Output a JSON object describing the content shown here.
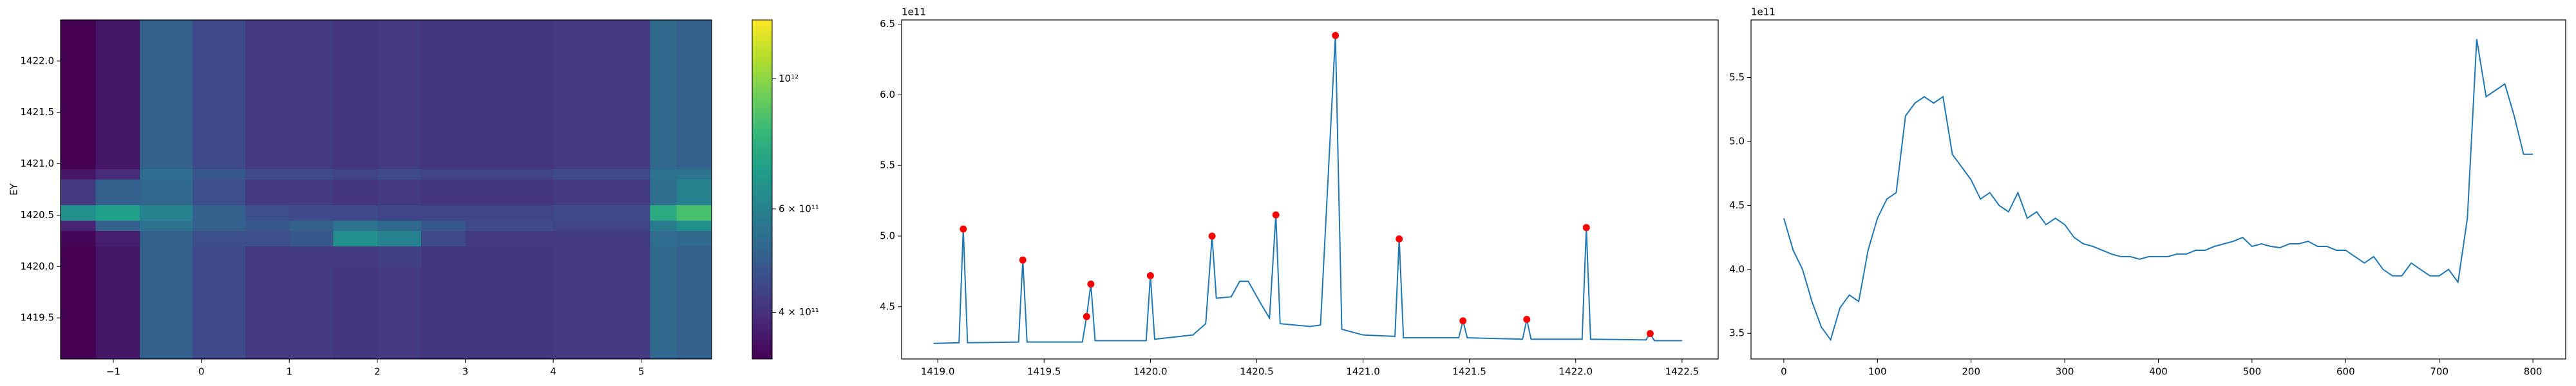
{
  "chart_data": [
    {
      "type": "heatmap",
      "ylabel": "EY",
      "colormap": "viridis",
      "x_edges": [
        -1.6,
        -1.2,
        -0.7,
        -0.1,
        0.5,
        1.0,
        1.5,
        2.0,
        2.5,
        3.0,
        4.0,
        5.1,
        5.4,
        5.8
      ],
      "y_edges": [
        1419.1,
        1419.5,
        1420.0,
        1420.2,
        1420.35,
        1420.45,
        1420.6,
        1420.85,
        1420.95,
        1421.5,
        1422.0,
        1422.4
      ],
      "z": [
        [
          330000000000.0,
          360000000000.0,
          500000000000.0,
          450000000000.0,
          420000000000.0,
          420000000000.0,
          410000000000.0,
          420000000000.0,
          410000000000.0,
          410000000000.0,
          420000000000.0,
          520000000000.0,
          500000000000.0
        ],
        [
          330000000000.0,
          360000000000.0,
          500000000000.0,
          450000000000.0,
          420000000000.0,
          420000000000.0,
          410000000000.0,
          420000000000.0,
          410000000000.0,
          410000000000.0,
          420000000000.0,
          520000000000.0,
          500000000000.0
        ],
        [
          330000000000.0,
          360000000000.0,
          500000000000.0,
          450000000000.0,
          420000000000.0,
          420000000000.0,
          420000000000.0,
          430000000000.0,
          410000000000.0,
          410000000000.0,
          420000000000.0,
          520000000000.0,
          500000000000.0
        ],
        [
          340000000000.0,
          370000000000.0,
          500000000000.0,
          460000000000.0,
          460000000000.0,
          480000000000.0,
          650000000000.0,
          600000000000.0,
          450000000000.0,
          420000000000.0,
          420000000000.0,
          530000000000.0,
          520000000000.0
        ],
        [
          380000000000.0,
          500000000000.0,
          550000000000.0,
          500000000000.0,
          480000000000.0,
          500000000000.0,
          550000000000.0,
          520000000000.0,
          480000000000.0,
          450000000000.0,
          440000000000.0,
          580000000000.0,
          650000000000.0
        ],
        [
          650000000000.0,
          700000000000.0,
          600000000000.0,
          500000000000.0,
          460000000000.0,
          450000000000.0,
          450000000000.0,
          440000000000.0,
          440000000000.0,
          440000000000.0,
          450000000000.0,
          750000000000.0,
          850000000000.0
        ],
        [
          420000000000.0,
          500000000000.0,
          520000000000.0,
          460000000000.0,
          420000000000.0,
          420000000000.0,
          410000000000.0,
          420000000000.0,
          410000000000.0,
          410000000000.0,
          420000000000.0,
          540000000000.0,
          600000000000.0
        ],
        [
          360000000000.0,
          390000000000.0,
          530000000000.0,
          480000000000.0,
          450000000000.0,
          450000000000.0,
          440000000000.0,
          450000000000.0,
          440000000000.0,
          440000000000.0,
          450000000000.0,
          550000000000.0,
          560000000000.0
        ],
        [
          330000000000.0,
          360000000000.0,
          500000000000.0,
          450000000000.0,
          420000000000.0,
          420000000000.0,
          410000000000.0,
          420000000000.0,
          410000000000.0,
          410000000000.0,
          420000000000.0,
          520000000000.0,
          500000000000.0
        ],
        [
          330000000000.0,
          360000000000.0,
          500000000000.0,
          450000000000.0,
          420000000000.0,
          420000000000.0,
          410000000000.0,
          420000000000.0,
          410000000000.0,
          410000000000.0,
          420000000000.0,
          520000000000.0,
          500000000000.0
        ],
        [
          330000000000.0,
          360000000000.0,
          500000000000.0,
          450000000000.0,
          420000000000.0,
          420000000000.0,
          410000000000.0,
          420000000000.0,
          410000000000.0,
          410000000000.0,
          420000000000.0,
          520000000000.0,
          500000000000.0
        ]
      ],
      "xlim": [
        -1.6,
        5.8
      ],
      "xticks": [
        {
          "value": -1,
          "label": "−1"
        },
        0,
        1,
        2,
        3,
        4,
        5
      ],
      "ylim": [
        1419.1,
        1422.4
      ],
      "yticks": [
        1419.5,
        {
          "value": 1420,
          "label": "1420.0"
        },
        1420.5,
        {
          "value": 1421,
          "label": "1421.0"
        },
        1421.5,
        {
          "value": 1422,
          "label": "1422.0"
        }
      ],
      "colorbar_log": true,
      "colorbar_lim": [
        333000000000.0,
        1260000000000.0
      ],
      "colorbar_ticks": [
        {
          "value": 400000000000.0,
          "label": "4 × 10¹¹"
        },
        {
          "value": 600000000000.0,
          "label": "6 × 10¹¹"
        },
        {
          "value": 1000000000000.0,
          "label": "10¹²"
        }
      ]
    },
    {
      "type": "line",
      "y_offset_label": "1e11",
      "series": [
        {
          "color": "#1f77b4",
          "style": "line",
          "x": [
            1418.98,
            1419.1,
            1419.12,
            1419.14,
            1419.38,
            1419.4,
            1419.42,
            1419.68,
            1419.7,
            1419.72,
            1419.74,
            1419.98,
            1420.0,
            1420.02,
            1420.2,
            1420.26,
            1420.29,
            1420.31,
            1420.38,
            1420.42,
            1420.46,
            1420.52,
            1420.56,
            1420.59,
            1420.61,
            1420.75,
            1420.8,
            1420.87,
            1420.9,
            1421.0,
            1421.15,
            1421.17,
            1421.19,
            1421.45,
            1421.47,
            1421.49,
            1421.75,
            1421.77,
            1421.79,
            1422.03,
            1422.05,
            1422.07,
            1422.33,
            1422.35,
            1422.37,
            1422.5
          ],
          "values": [
            4.24,
            4.245,
            5.05,
            4.245,
            4.25,
            4.83,
            4.25,
            4.25,
            4.43,
            4.66,
            4.26,
            4.26,
            4.72,
            4.27,
            4.3,
            4.38,
            5.0,
            4.56,
            4.57,
            4.68,
            4.68,
            4.52,
            4.42,
            5.15,
            4.38,
            4.36,
            4.37,
            6.42,
            4.34,
            4.3,
            4.29,
            4.98,
            4.28,
            4.28,
            4.4,
            4.28,
            4.27,
            4.41,
            4.27,
            4.27,
            5.06,
            4.27,
            4.265,
            4.31,
            4.26,
            4.26
          ]
        },
        {
          "color": "#ff0000",
          "style": "markers",
          "x": [
            1419.12,
            1419.4,
            1419.7,
            1419.72,
            1420.0,
            1420.29,
            1420.59,
            1420.87,
            1421.17,
            1421.47,
            1421.77,
            1422.05,
            1422.35
          ],
          "values": [
            5.05,
            4.83,
            4.43,
            4.66,
            4.72,
            5.0,
            5.15,
            6.42,
            4.98,
            4.4,
            4.41,
            5.06,
            4.31
          ]
        }
      ],
      "xlim": [
        1418.83,
        1422.67
      ],
      "xticks": [
        {
          "value": 1419,
          "label": "1419.0"
        },
        1419.5,
        {
          "value": 1420,
          "label": "1420.0"
        },
        1420.5,
        {
          "value": 1421,
          "label": "1421.0"
        },
        1421.5,
        {
          "value": 1422,
          "label": "1422.0"
        },
        1422.5
      ],
      "ylim": [
        4.13,
        6.53
      ],
      "yticks": [
        4.5,
        {
          "value": 5,
          "label": "5.0"
        },
        5.5,
        {
          "value": 6,
          "label": "6.0"
        },
        6.5
      ]
    },
    {
      "type": "line",
      "y_offset_label": "1e11",
      "series": [
        {
          "color": "#1f77b4",
          "style": "line",
          "x": [
            0,
            10,
            20,
            30,
            40,
            50,
            60,
            70,
            80,
            90,
            100,
            110,
            120,
            130,
            140,
            150,
            160,
            170,
            180,
            190,
            200,
            210,
            220,
            230,
            240,
            250,
            260,
            270,
            280,
            290,
            300,
            310,
            320,
            330,
            340,
            350,
            360,
            370,
            380,
            390,
            400,
            410,
            420,
            430,
            440,
            450,
            460,
            470,
            480,
            490,
            500,
            510,
            520,
            530,
            540,
            550,
            560,
            570,
            580,
            590,
            600,
            610,
            620,
            630,
            640,
            650,
            660,
            670,
            680,
            690,
            700,
            710,
            720,
            730,
            740,
            750,
            760,
            770,
            780,
            790,
            800
          ],
          "values": [
            4.4,
            4.15,
            4.0,
            3.75,
            3.55,
            3.45,
            3.7,
            3.8,
            3.75,
            4.15,
            4.4,
            4.55,
            4.6,
            5.2,
            5.3,
            5.35,
            5.3,
            5.35,
            4.9,
            4.8,
            4.7,
            4.55,
            4.6,
            4.5,
            4.45,
            4.6,
            4.4,
            4.45,
            4.35,
            4.4,
            4.35,
            4.25,
            4.2,
            4.18,
            4.15,
            4.12,
            4.1,
            4.1,
            4.08,
            4.1,
            4.1,
            4.1,
            4.12,
            4.12,
            4.15,
            4.15,
            4.18,
            4.2,
            4.22,
            4.25,
            4.18,
            4.2,
            4.18,
            4.17,
            4.2,
            4.2,
            4.22,
            4.18,
            4.18,
            4.15,
            4.15,
            4.1,
            4.05,
            4.1,
            4.0,
            3.95,
            3.95,
            4.05,
            4.0,
            3.95,
            3.95,
            4.0,
            3.9,
            4.4,
            5.8,
            5.35,
            5.4,
            5.45,
            5.2,
            4.9,
            4.9
          ]
        }
      ],
      "xlim": [
        -35,
        835
      ],
      "xticks": [
        0,
        100,
        200,
        300,
        400,
        500,
        600,
        700,
        800
      ],
      "ylim": [
        3.3,
        5.95
      ],
      "yticks": [
        3.5,
        {
          "value": 4,
          "label": "4.0"
        },
        4.5,
        {
          "value": 5,
          "label": "5.0"
        },
        5.5
      ]
    }
  ]
}
